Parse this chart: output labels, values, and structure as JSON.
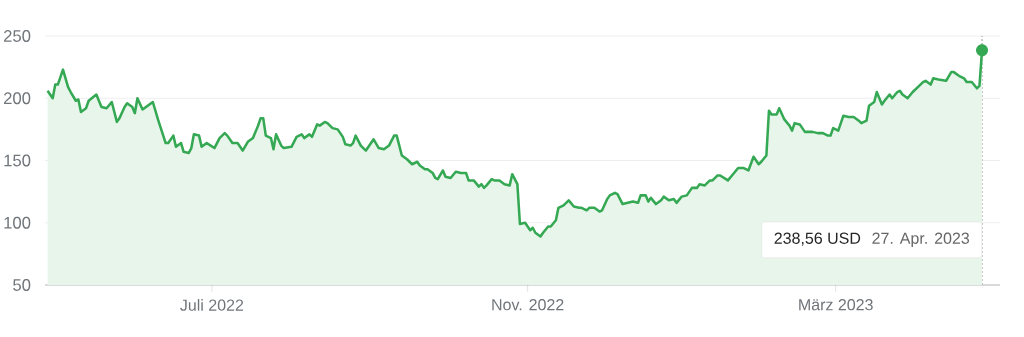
{
  "chart_data": {
    "type": "area",
    "x": [
      "2022-04-28",
      "2022-04-30",
      "2022-05-01",
      "2022-05-02",
      "2022-05-04",
      "2022-05-06",
      "2022-05-07",
      "2022-05-09",
      "2022-05-10",
      "2022-05-11",
      "2022-05-13",
      "2022-05-14",
      "2022-05-17",
      "2022-05-19",
      "2022-05-21",
      "2022-05-23",
      "2022-05-25",
      "2022-05-26",
      "2022-05-28",
      "2022-05-29",
      "2022-05-31",
      "2022-06-01",
      "2022-06-02",
      "2022-06-04",
      "2022-06-06",
      "2022-06-08",
      "2022-06-10",
      "2022-06-13",
      "2022-06-14",
      "2022-06-16",
      "2022-06-17",
      "2022-06-19",
      "2022-06-20",
      "2022-06-22",
      "2022-06-23",
      "2022-06-24",
      "2022-06-26",
      "2022-06-27",
      "2022-06-29",
      "2022-07-02",
      "2022-07-04",
      "2022-07-06",
      "2022-07-07",
      "2022-07-09",
      "2022-07-11",
      "2022-07-13",
      "2022-07-15",
      "2022-07-17",
      "2022-07-19",
      "2022-07-20",
      "2022-07-21",
      "2022-07-22",
      "2022-07-24",
      "2022-07-25",
      "2022-07-26",
      "2022-07-28",
      "2022-07-29",
      "2022-08-01",
      "2022-08-03",
      "2022-08-05",
      "2022-08-06",
      "2022-08-08",
      "2022-08-09",
      "2022-08-11",
      "2022-08-12",
      "2022-08-14",
      "2022-08-15",
      "2022-08-17",
      "2022-08-19",
      "2022-08-21",
      "2022-08-22",
      "2022-08-24",
      "2022-08-25",
      "2022-08-26",
      "2022-08-28",
      "2022-08-30",
      "2022-09-01",
      "2022-09-02",
      "2022-09-04",
      "2022-09-06",
      "2022-09-08",
      "2022-09-10",
      "2022-09-11",
      "2022-09-13",
      "2022-09-15",
      "2022-09-17",
      "2022-09-19",
      "2022-09-20",
      "2022-09-22",
      "2022-09-23",
      "2022-09-25",
      "2022-09-26",
      "2022-09-27",
      "2022-09-29",
      "2022-09-30",
      "2022-10-02",
      "2022-10-04",
      "2022-10-06",
      "2022-10-08",
      "2022-10-09",
      "2022-10-11",
      "2022-10-13",
      "2022-10-14",
      "2022-10-15",
      "2022-10-16",
      "2022-10-18",
      "2022-10-19",
      "2022-10-21",
      "2022-10-23",
      "2022-10-25",
      "2022-10-26",
      "2022-10-28",
      "2022-10-29",
      "2022-10-31",
      "2022-11-02",
      "2022-11-03",
      "2022-11-04",
      "2022-11-06",
      "2022-11-07",
      "2022-11-09",
      "2022-11-10",
      "2022-11-12",
      "2022-11-13",
      "2022-11-15",
      "2022-11-17",
      "2022-11-19",
      "2022-11-21",
      "2022-11-22",
      "2022-11-24",
      "2022-11-25",
      "2022-11-27",
      "2022-11-29",
      "2022-11-30",
      "2022-12-02",
      "2022-12-03",
      "2022-12-05",
      "2022-12-06",
      "2022-12-08",
      "2022-12-10",
      "2022-12-12",
      "2022-12-14",
      "2022-12-15",
      "2022-12-17",
      "2022-12-18",
      "2022-12-19",
      "2022-12-21",
      "2022-12-23",
      "2022-12-24",
      "2022-12-26",
      "2022-12-28",
      "2022-12-29",
      "2022-12-31",
      "2023-01-02",
      "2023-01-04",
      "2023-01-06",
      "2023-01-07",
      "2023-01-09",
      "2023-01-11",
      "2023-01-12",
      "2023-01-14",
      "2023-01-15",
      "2023-01-18",
      "2023-01-20",
      "2023-01-22",
      "2023-01-24",
      "2023-01-26",
      "2023-01-28",
      "2023-01-30",
      "2023-01-31",
      "2023-02-02",
      "2023-02-03",
      "2023-02-04",
      "2023-02-06",
      "2023-02-07",
      "2023-02-09",
      "2023-02-11",
      "2023-02-12",
      "2023-02-13",
      "2023-02-15",
      "2023-02-17",
      "2023-02-20",
      "2023-02-22",
      "2023-02-24",
      "2023-02-26",
      "2023-02-27",
      "2023-02-28",
      "2023-03-02",
      "2023-03-04",
      "2023-03-06",
      "2023-03-08",
      "2023-03-10",
      "2023-03-11",
      "2023-03-13",
      "2023-03-14",
      "2023-03-16",
      "2023-03-17",
      "2023-03-19",
      "2023-03-20",
      "2023-03-22",
      "2023-03-23",
      "2023-03-25",
      "2023-03-26",
      "2023-03-27",
      "2023-03-29",
      "2023-03-31",
      "2023-04-02",
      "2023-04-04",
      "2023-04-05",
      "2023-04-07",
      "2023-04-08",
      "2023-04-10",
      "2023-04-13",
      "2023-04-15",
      "2023-04-16",
      "2023-04-18",
      "2023-04-20",
      "2023-04-21",
      "2023-04-23",
      "2023-04-25",
      "2023-04-26",
      "2023-04-27"
    ],
    "series": [
      {
        "color": "#34a853",
        "values": [
          206,
          200,
          211,
          211,
          223,
          209,
          205,
          198,
          199,
          189,
          192,
          198,
          203,
          193,
          192,
          197,
          181,
          184,
          193,
          196,
          193,
          188,
          200,
          191,
          194,
          197,
          183,
          164,
          164,
          170,
          161,
          164,
          157,
          156,
          160,
          171,
          170,
          161,
          164,
          160,
          168,
          172,
          170,
          164,
          164,
          158,
          165,
          168,
          178,
          184,
          184,
          170,
          168,
          159,
          171,
          162,
          160,
          161,
          169,
          171,
          168,
          171,
          169,
          179,
          178,
          181,
          180,
          176,
          175,
          169,
          163,
          162,
          164,
          170,
          162,
          158,
          164,
          167,
          160,
          159,
          162,
          170,
          170,
          154,
          151,
          147,
          149,
          146,
          143,
          143,
          140,
          136,
          135,
          142,
          137,
          136,
          141,
          140,
          140,
          134,
          134,
          129,
          131,
          128,
          130,
          135,
          134,
          134,
          131,
          130,
          139,
          131,
          99,
          100,
          94,
          96,
          92,
          89,
          92,
          97,
          97,
          102,
          112,
          114,
          118,
          113,
          112,
          112,
          110,
          112,
          112,
          109,
          110,
          119,
          122,
          124,
          123,
          115,
          116,
          117,
          116,
          122,
          122,
          117,
          120,
          115,
          118,
          121,
          118,
          119,
          116,
          121,
          122,
          128,
          128,
          131,
          130,
          134,
          134,
          138,
          138,
          134,
          139,
          144,
          144,
          142,
          153,
          147,
          149,
          154,
          190,
          187,
          187,
          192,
          183,
          178,
          174,
          180,
          179,
          173,
          173,
          172,
          172,
          170,
          170,
          176,
          174,
          186,
          185,
          185,
          182,
          180,
          182,
          194,
          197,
          205,
          195,
          198,
          203,
          200,
          205,
          206,
          203,
          200,
          205,
          209,
          213,
          214,
          211,
          216,
          215,
          214,
          221,
          221,
          218,
          216,
          213,
          213,
          208,
          210,
          238.56
        ]
      }
    ],
    "xlim": [
      "2022-04-27",
      "2023-05-04"
    ],
    "ylim": [
      50,
      250
    ],
    "xticks": [
      {
        "value": "2022-07-01",
        "label": "Juli 2022"
      },
      {
        "value": "2022-11-01",
        "label": "Nov. 2022"
      },
      {
        "value": "2023-03-01",
        "label": "März 2023"
      }
    ],
    "yticks": [
      50,
      100,
      150,
      200,
      250
    ],
    "grid": "y",
    "ref_lines": [
      {
        "axis": "x",
        "value": "2023-04-27",
        "line_style": "dotted",
        "color": "#9e9e9e"
      }
    ],
    "annotations": [
      "238,56 USD",
      "27. Apr. 2023"
    ]
  }
}
